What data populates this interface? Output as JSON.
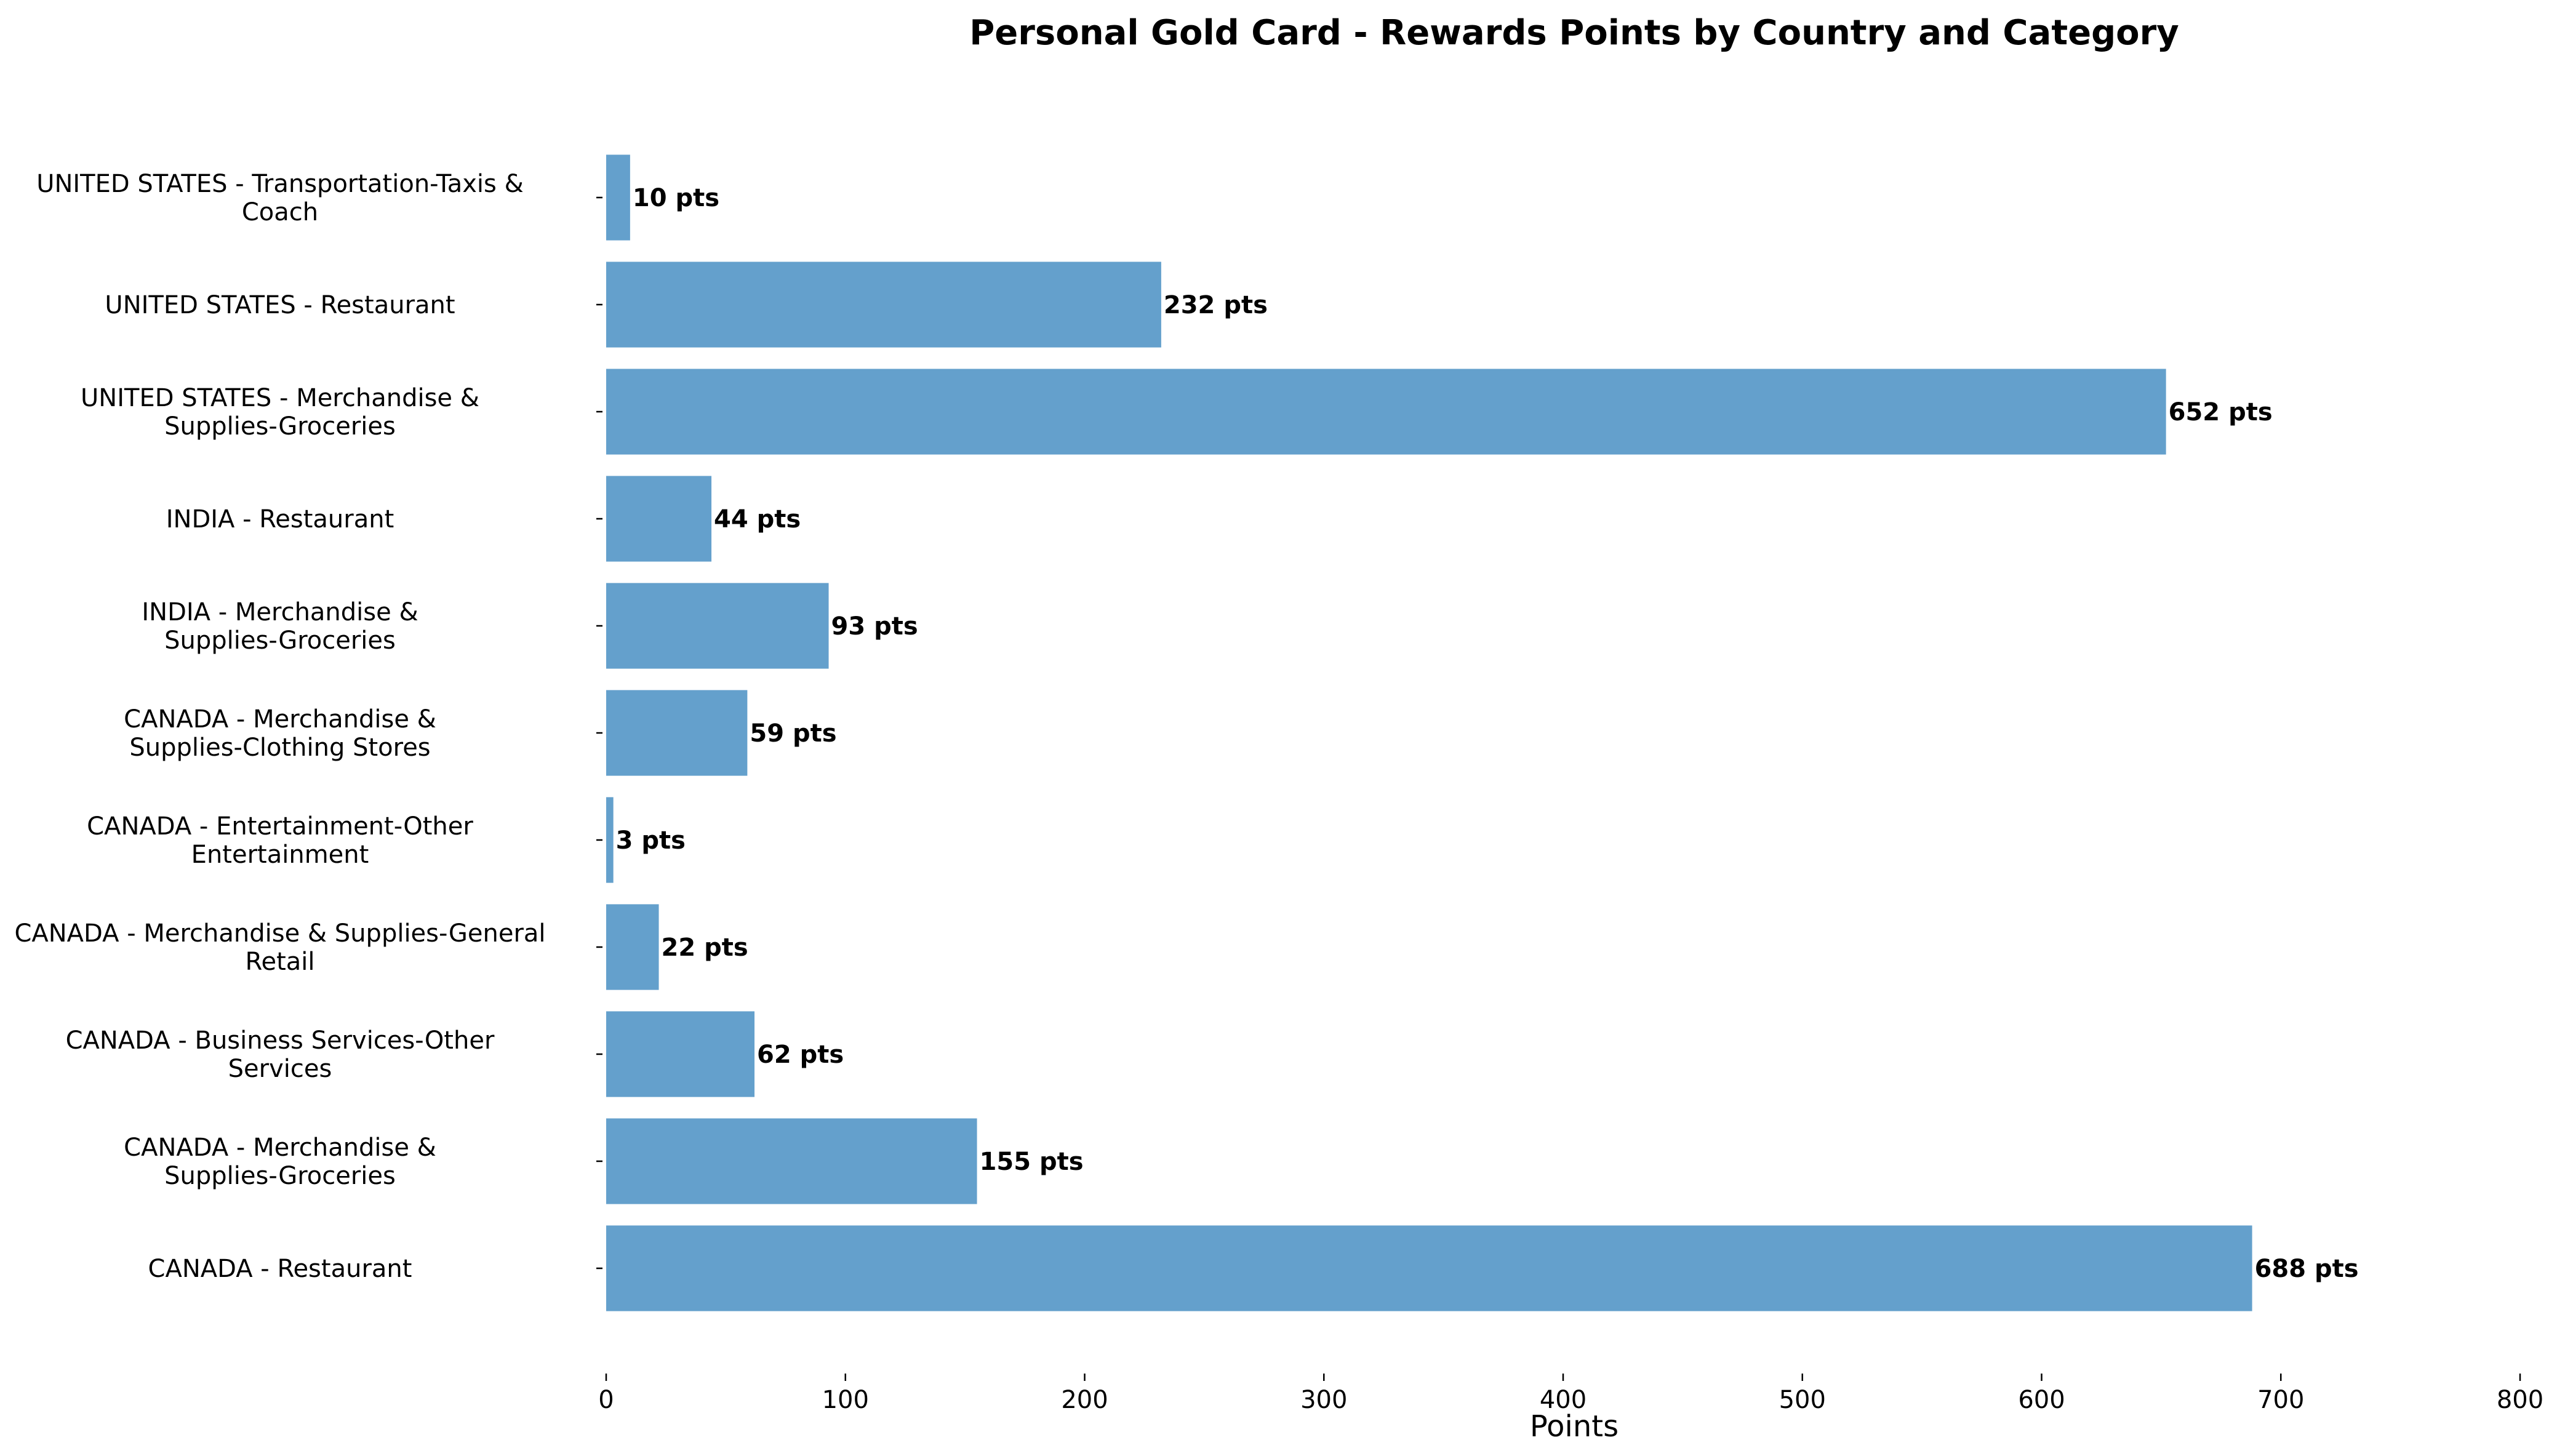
{
  "chart_data": {
    "type": "bar",
    "orientation": "horizontal",
    "title": "Personal Gold Card - Rewards Points by Country and Category",
    "xlabel": "Points",
    "ylabel": "",
    "xlim": [
      0,
      800
    ],
    "xticks": [
      "0",
      "100",
      "200",
      "300",
      "400",
      "500",
      "600",
      "700",
      "800"
    ],
    "grid": false,
    "bar_color": "#64a0cc",
    "value_suffix": " pts",
    "categories": [
      [
        "CANADA - Restaurant"
      ],
      [
        "CANADA - Merchandise &",
        "Supplies-Groceries"
      ],
      [
        "CANADA - Business Services-Other",
        "Services"
      ],
      [
        "CANADA - Merchandise & Supplies-General",
        "Retail"
      ],
      [
        "CANADA - Entertainment-Other",
        "Entertainment"
      ],
      [
        "CANADA - Merchandise &",
        "Supplies-Clothing Stores"
      ],
      [
        "INDIA - Merchandise &",
        "Supplies-Groceries"
      ],
      [
        "INDIA - Restaurant"
      ],
      [
        "UNITED STATES - Merchandise &",
        "Supplies-Groceries"
      ],
      [
        "UNITED STATES - Restaurant"
      ],
      [
        "UNITED STATES - Transportation-Taxis &",
        "Coach"
      ]
    ],
    "values": [
      688,
      155,
      62,
      22,
      3,
      59,
      93,
      44,
      652,
      232,
      10
    ]
  }
}
